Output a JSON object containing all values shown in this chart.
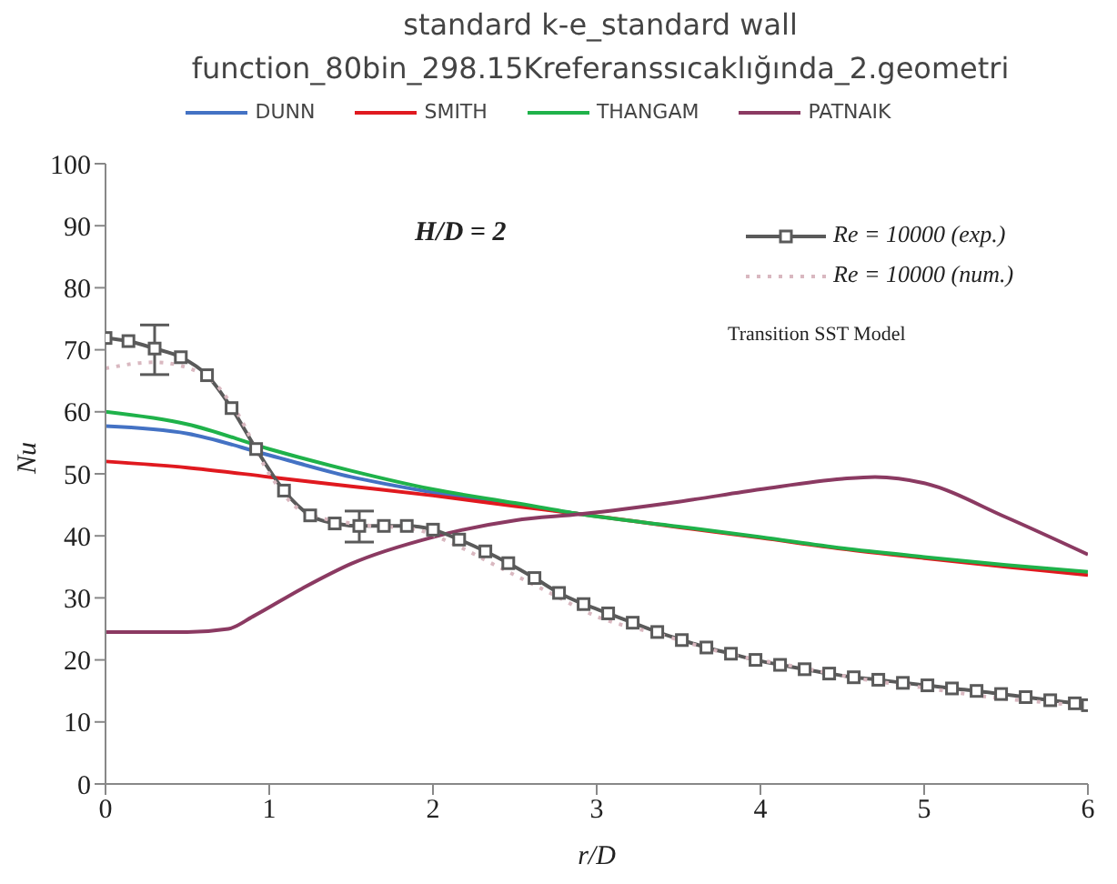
{
  "chart_data": {
    "type": "line",
    "title": "standard k-e_standard wall function_80bin_298.15Kreferanssıcaklığında_2.geometri",
    "xlabel": "r/D",
    "ylabel": "Nu",
    "xlim": [
      0,
      6
    ],
    "xticks": [
      0,
      1,
      2,
      3,
      4,
      5,
      6
    ],
    "ylim": [
      0,
      100
    ],
    "yticks": [
      0,
      10,
      20,
      30,
      40,
      50,
      60,
      70,
      80,
      90,
      100
    ],
    "grid": false,
    "legend": "top",
    "annotations": [
      "H/D = 2",
      "Transition SST Model"
    ],
    "series": [
      {
        "name": "DUNN",
        "color": "#4472c4",
        "x": [
          0,
          0.5,
          1,
          1.5,
          2,
          2.5,
          2.9
        ],
        "values": [
          57.7,
          56.5,
          53,
          49.5,
          47,
          45,
          43.5
        ]
      },
      {
        "name": "SMITH",
        "color": "#e0191f",
        "x": [
          0,
          0.5,
          1,
          1.5,
          2,
          2.5,
          2.9,
          3.5,
          4,
          4.5,
          5,
          5.5,
          6
        ],
        "values": [
          52,
          51,
          49.5,
          48,
          46.5,
          44.8,
          43.5,
          41.4,
          39.7,
          37.9,
          36.4,
          35,
          33.7
        ]
      },
      {
        "name": "THANGAM",
        "color": "#1fb24a",
        "x": [
          0,
          0.5,
          1,
          1.5,
          2,
          2.5,
          2.9,
          3.5,
          4,
          4.5,
          5,
          5.5,
          6
        ],
        "values": [
          60,
          58,
          54,
          50.5,
          47.5,
          45.3,
          43.5,
          41.5,
          39.8,
          38,
          36.6,
          35.3,
          34.2
        ]
      },
      {
        "name": "PATNAIK",
        "color": "#8b3a62",
        "x": [
          0,
          0.5,
          0.75,
          0.9,
          1.2,
          1.5,
          2,
          2.5,
          2.9,
          3.5,
          4,
          4.5,
          4.7,
          5,
          5.5,
          6
        ],
        "values": [
          24.5,
          24.5,
          25,
          27,
          31.5,
          35.5,
          39.8,
          42.5,
          43.5,
          45.5,
          47.5,
          49.2,
          49.5,
          48.5,
          43,
          37
        ]
      },
      {
        "name": "Re = 10000 (exp.)",
        "color": "#5a5a5a",
        "marker": "square",
        "x": [
          0,
          0.14,
          0.3,
          0.46,
          0.62,
          0.77,
          0.92,
          1.09,
          1.25,
          1.4,
          1.55,
          1.7,
          1.84,
          2,
          2.16,
          2.32,
          2.46,
          2.62,
          2.77,
          2.92,
          3.07,
          3.22,
          3.37,
          3.52,
          3.67,
          3.82,
          3.97,
          4.12,
          4.27,
          4.42,
          4.57,
          4.72,
          4.87,
          5.02,
          5.17,
          5.32,
          5.47,
          5.62,
          5.77,
          5.92,
          6
        ],
        "values": [
          71.9,
          71.4,
          70.2,
          68.8,
          65.9,
          60.6,
          54,
          47.3,
          43.3,
          42,
          41.6,
          41.6,
          41.6,
          41,
          39.4,
          37.5,
          35.6,
          33.2,
          30.8,
          29,
          27.5,
          26,
          24.5,
          23.2,
          22,
          21,
          20,
          19.2,
          18.5,
          17.8,
          17.2,
          16.8,
          16.3,
          15.9,
          15.4,
          15,
          14.5,
          14,
          13.5,
          13,
          12.7
        ],
        "errors": [
          null,
          null,
          [
            66,
            74
          ],
          null,
          null,
          null,
          null,
          null,
          null,
          null,
          [
            39,
            44
          ],
          null,
          null,
          null,
          null,
          null,
          null,
          null,
          null,
          null,
          null,
          null,
          null,
          null,
          null,
          null,
          null,
          null,
          null,
          null,
          null,
          null,
          null,
          null,
          null,
          null,
          null,
          null,
          null,
          null,
          null
        ]
      },
      {
        "name": "Re = 10000 (num.)",
        "color": "#d9b8c0",
        "line_style": "dotted",
        "x": [
          0,
          0.3,
          0.6,
          0.8,
          1,
          1.2,
          1.5,
          1.9,
          2.1,
          2.4,
          2.7,
          3,
          3.4,
          3.8,
          4.2,
          4.6,
          5,
          5.4,
          5.8,
          6
        ],
        "values": [
          67,
          68,
          66,
          60,
          50,
          44,
          42,
          41,
          39,
          35,
          31,
          27,
          24,
          21,
          19,
          17,
          15.5,
          14,
          13,
          12.5
        ]
      }
    ]
  }
}
